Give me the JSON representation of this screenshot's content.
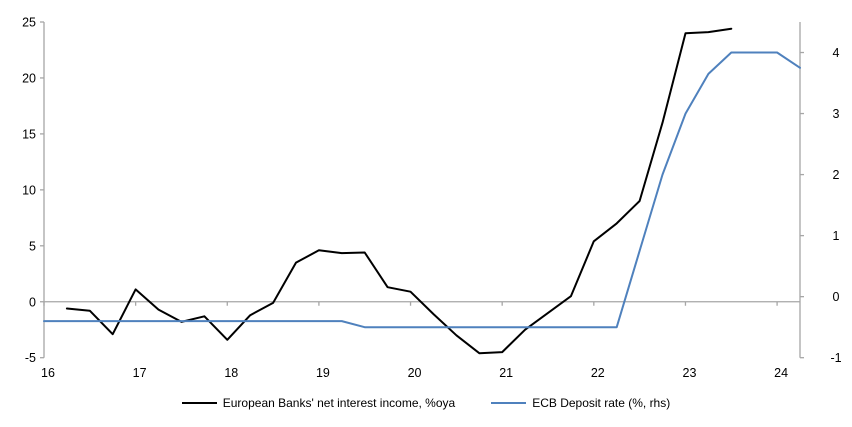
{
  "chart_data": {
    "type": "line",
    "title": "",
    "legend_position": "bottom",
    "background_color": "#ffffff",
    "axis_color": "#a6a6a6",
    "grid": false,
    "zero_line": true,
    "x_axis": {
      "range": [
        16,
        24.25
      ],
      "ticks": [
        16,
        17,
        18,
        19,
        20,
        21,
        22,
        23,
        24
      ],
      "tick_labels": [
        "16",
        "17",
        "18",
        "19",
        "20",
        "21",
        "22",
        "23",
        "24"
      ]
    },
    "left_axis": {
      "range": [
        -5,
        25
      ],
      "ticks": [
        25,
        20,
        15,
        10,
        5,
        0,
        -5
      ],
      "tick_labels": [
        "25",
        "20",
        "15",
        "10",
        "5",
        "0",
        "-5"
      ]
    },
    "right_axis": {
      "range": [
        -1,
        4.5
      ],
      "ticks": [
        4,
        3,
        2,
        1,
        0,
        -1
      ],
      "tick_labels": [
        "4",
        "3",
        "2",
        "1",
        "0",
        "-1"
      ]
    },
    "series": [
      {
        "name": "European Banks' net interest income, %oya",
        "axis": "left",
        "color": "#000000",
        "x": [
          16.25,
          16.5,
          16.75,
          17.0,
          17.25,
          17.5,
          17.75,
          18.0,
          18.25,
          18.5,
          18.75,
          19.0,
          19.25,
          19.5,
          19.75,
          20.0,
          20.25,
          20.5,
          20.75,
          21.0,
          21.25,
          21.5,
          21.75,
          22.0,
          22.25,
          22.5,
          22.75,
          23.0,
          23.25,
          23.5
        ],
        "values": [
          -0.6,
          -0.8,
          -2.9,
          1.1,
          -0.7,
          -1.8,
          -1.3,
          -3.4,
          -1.2,
          -0.1,
          3.5,
          4.6,
          4.35,
          4.4,
          1.3,
          0.9,
          -1.1,
          -3.0,
          -4.6,
          -4.5,
          -2.5,
          -1.0,
          0.5,
          5.4,
          7.0,
          9.0,
          16.0,
          24.0,
          24.1,
          24.4
        ]
      },
      {
        "name": "ECB Deposit rate (%, rhs)",
        "axis": "right",
        "color": "#4f81bd",
        "x": [
          16.0,
          19.25,
          19.5,
          22.25,
          22.5,
          22.75,
          23.0,
          23.25,
          23.5,
          24.0,
          24.25
        ],
        "values": [
          -0.4,
          -0.4,
          -0.5,
          -0.5,
          0.75,
          2.0,
          3.0,
          3.65,
          4.0,
          4.0,
          3.75
        ]
      }
    ],
    "legend": {
      "items": [
        {
          "label": "European Banks' net interest income, %oya"
        },
        {
          "label": "ECB Deposit rate (%, rhs)"
        }
      ]
    }
  }
}
